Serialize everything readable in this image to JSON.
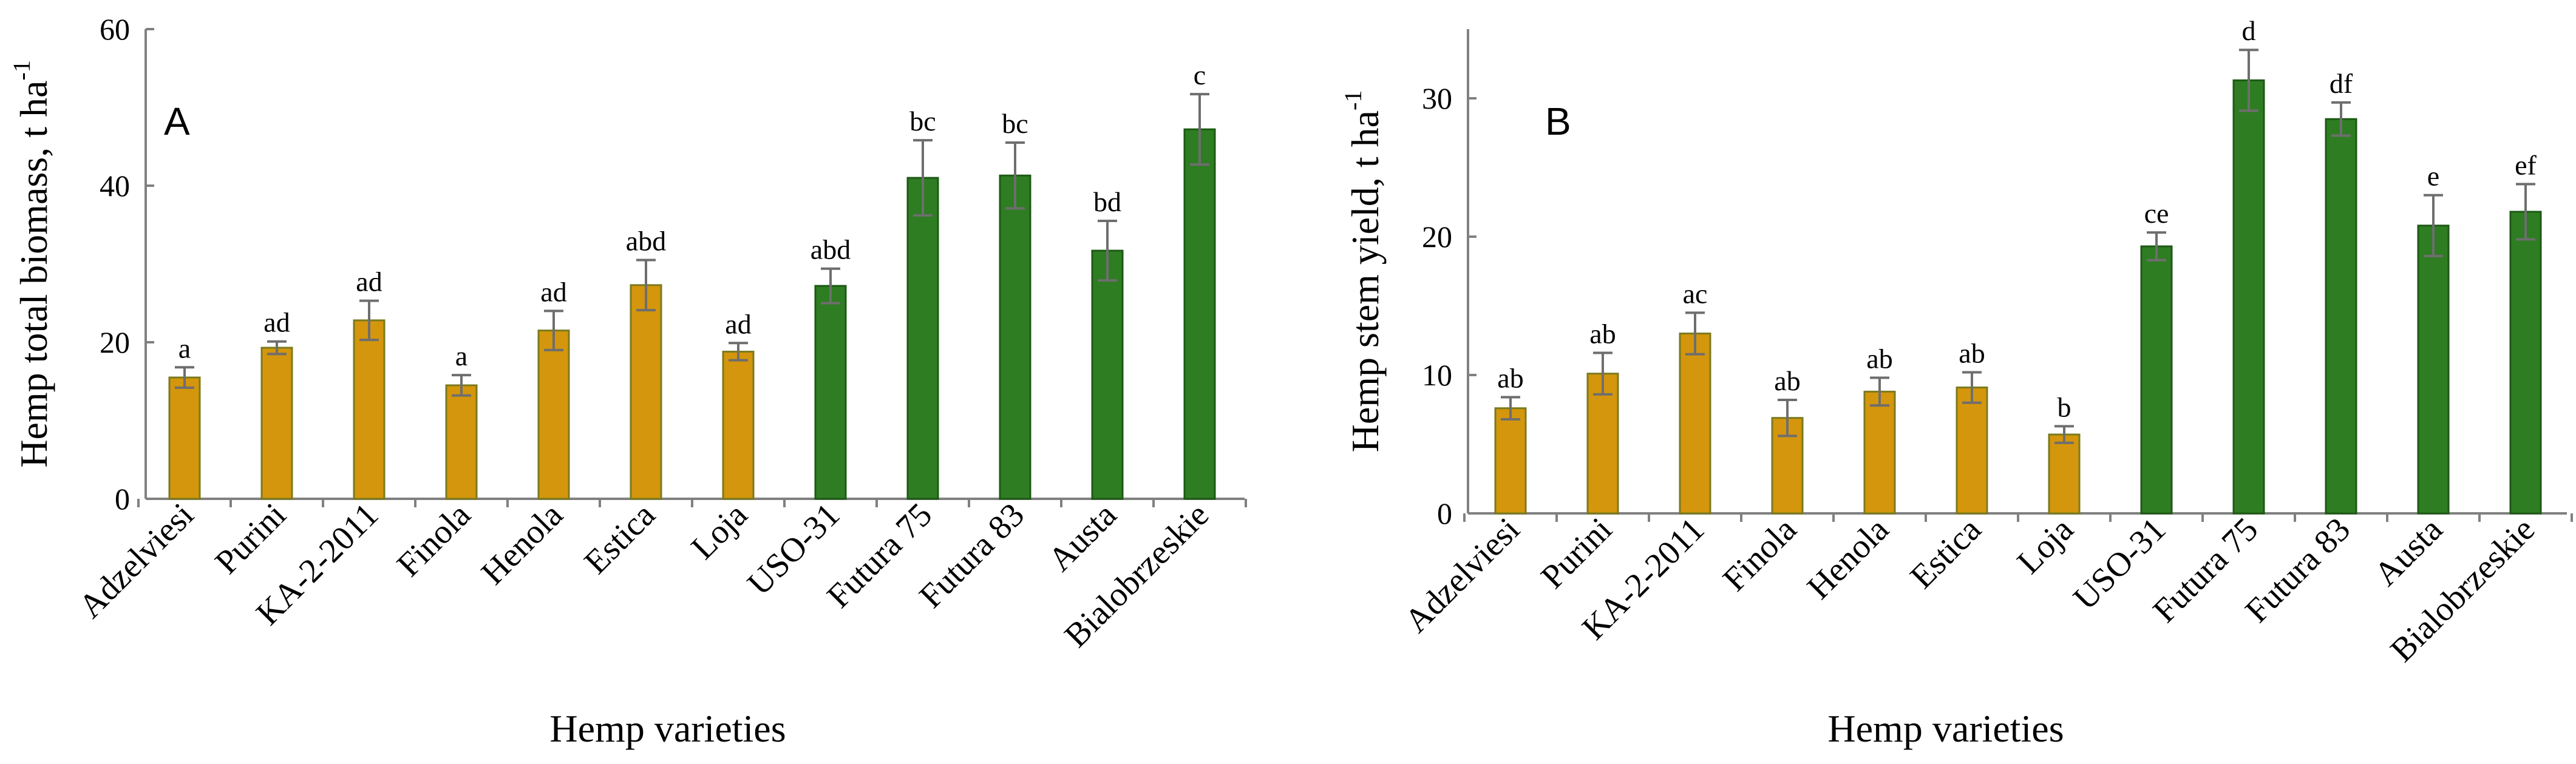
{
  "chart_data": [
    {
      "type": "bar",
      "panel_label": "A",
      "title": "",
      "xlabel": "Hemp varieties",
      "ylabel": "Hemp total biomass, t ha",
      "ylabel_sup": "-1",
      "ylim": [
        0,
        60
      ],
      "yticks": [
        0,
        20,
        40,
        60
      ],
      "grid": false,
      "categories": [
        "Adzelviesi",
        "Purini",
        "KA-2-2011",
        "Finola",
        "Henola",
        "Estica",
        "Loja",
        "USO-31",
        "Futura 75",
        "Futura 83",
        "Austa",
        "Bialobrzeskie"
      ],
      "values": [
        15.5,
        19.3,
        22.8,
        14.5,
        21.5,
        27.3,
        18.8,
        27.2,
        41.0,
        41.3,
        31.7,
        47.2
      ],
      "errors": [
        1.3,
        0.8,
        2.5,
        1.3,
        2.5,
        3.2,
        1.1,
        2.2,
        4.8,
        4.2,
        3.8,
        4.5
      ],
      "letters": [
        "a",
        "ad",
        "ad",
        "a",
        "ad",
        "abd",
        "ad",
        "abd",
        "bc",
        "bc",
        "bd",
        "c"
      ],
      "groups": [
        "fiber-oil",
        "fiber-oil",
        "fiber-oil",
        "fiber-oil",
        "fiber-oil",
        "fiber-oil",
        "fiber-oil",
        "fiber",
        "fiber",
        "fiber",
        "fiber",
        "fiber"
      ]
    },
    {
      "type": "bar",
      "panel_label": "B",
      "title": "",
      "xlabel": "Hemp varieties",
      "ylabel": "Hemp stem yield, t ha",
      "ylabel_sup": "-1",
      "ylim": [
        0,
        35
      ],
      "yticks": [
        0,
        10,
        20,
        30
      ],
      "grid": false,
      "categories": [
        "Adzelviesi",
        "Purini",
        "KA-2-2011",
        "Finola",
        "Henola",
        "Estica",
        "Loja",
        "USO-31",
        "Futura 75",
        "Futura 83",
        "Austa",
        "Bialobrzeskie"
      ],
      "values": [
        7.6,
        10.1,
        13.0,
        6.9,
        8.8,
        9.1,
        5.7,
        19.3,
        31.3,
        28.5,
        20.8,
        21.8
      ],
      "errors": [
        0.8,
        1.5,
        1.5,
        1.3,
        1.0,
        1.1,
        0.6,
        1.0,
        2.2,
        1.2,
        2.2,
        2.0
      ],
      "letters": [
        "ab",
        "ab",
        "ac",
        "ab",
        "ab",
        "ab",
        "b",
        "ce",
        "d",
        "df",
        "e",
        "ef"
      ],
      "groups": [
        "fiber-oil",
        "fiber-oil",
        "fiber-oil",
        "fiber-oil",
        "fiber-oil",
        "fiber-oil",
        "fiber-oil",
        "fiber",
        "fiber",
        "fiber",
        "fiber",
        "fiber"
      ]
    }
  ],
  "colors": {
    "fiber-oil": "#d4960c",
    "fiber-oil-edge": "#7a7a1e",
    "fiber": "#2e7d22",
    "fiber-edge": "#1d5a14"
  }
}
